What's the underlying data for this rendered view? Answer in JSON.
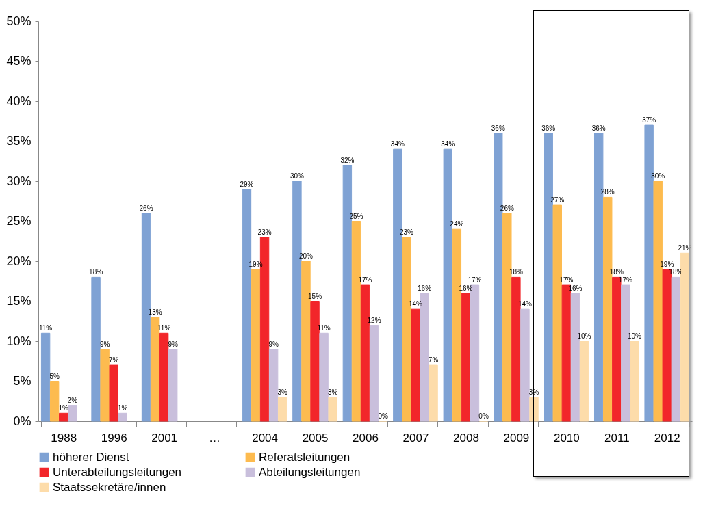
{
  "chart_data": {
    "type": "bar",
    "categories": [
      "1988",
      "1996",
      "2001",
      "…",
      "2004",
      "2005",
      "2006",
      "2007",
      "2008",
      "2009",
      "2010",
      "2011",
      "2012"
    ],
    "series": [
      {
        "name": "höherer Dienst",
        "color": "#7fa2d4",
        "values": [
          11,
          18,
          26,
          null,
          29,
          30,
          32,
          34,
          34,
          36,
          36,
          36,
          37
        ],
        "value_labels": [
          "11%",
          "18%",
          "26%",
          null,
          "29%",
          "30%",
          "32%",
          "34%",
          "34%",
          "36%",
          "36%",
          "36%",
          "37%"
        ]
      },
      {
        "name": "Referatsleitungen",
        "color": "#fdbb4f",
        "values": [
          5,
          9,
          13,
          null,
          19,
          20,
          25,
          23,
          24,
          26,
          27,
          28,
          30
        ],
        "value_labels": [
          "5%",
          "9%",
          "13%",
          null,
          "19%",
          "20%",
          "25%",
          "23%",
          "24%",
          "26%",
          "27%",
          "28%",
          "30%"
        ]
      },
      {
        "name": "Unterabteilungsleitungen",
        "color": "#f2262a",
        "values": [
          1,
          7,
          11,
          null,
          23,
          15,
          17,
          14,
          16,
          18,
          17,
          18,
          19
        ],
        "value_labels": [
          "1%",
          "7%",
          "11%",
          null,
          "23%",
          "15%",
          "17%",
          "14%",
          "16%",
          "18%",
          "17%",
          "18%",
          "19%"
        ]
      },
      {
        "name": "Abteilungsleitungen",
        "color": "#c9bfdc",
        "values": [
          2,
          1,
          9,
          null,
          9,
          11,
          12,
          16,
          17,
          14,
          16,
          17,
          18
        ],
        "value_labels": [
          "2%",
          "1%",
          "9%",
          null,
          "9%",
          "11%",
          "12%",
          "16%",
          "17%",
          "14%",
          "16%",
          "17%",
          "18%"
        ]
      },
      {
        "name": "Staatssekretäre/innen",
        "color": "#fddcaa",
        "values": [
          null,
          null,
          null,
          null,
          3,
          3,
          0,
          7,
          0,
          3,
          10,
          10,
          21
        ],
        "value_labels": [
          null,
          null,
          null,
          null,
          "3%",
          "3%",
          "0%",
          "7%",
          "0%",
          "3%",
          "10%",
          "10%",
          "21%"
        ]
      }
    ],
    "ylim": [
      0,
      50
    ],
    "yticks": [
      {
        "value": 0,
        "label": "0%"
      },
      {
        "value": 5,
        "label": "5%"
      },
      {
        "value": 10,
        "label": "10%"
      },
      {
        "value": 15,
        "label": "15%"
      },
      {
        "value": 20,
        "label": "20%"
      },
      {
        "value": 25,
        "label": "25%"
      },
      {
        "value": 30,
        "label": "30%"
      },
      {
        "value": 35,
        "label": "35%"
      },
      {
        "value": 40,
        "label": "40%"
      },
      {
        "value": 45,
        "label": "45%"
      },
      {
        "value": 50,
        "label": "50%"
      }
    ],
    "legend": "bottom"
  }
}
